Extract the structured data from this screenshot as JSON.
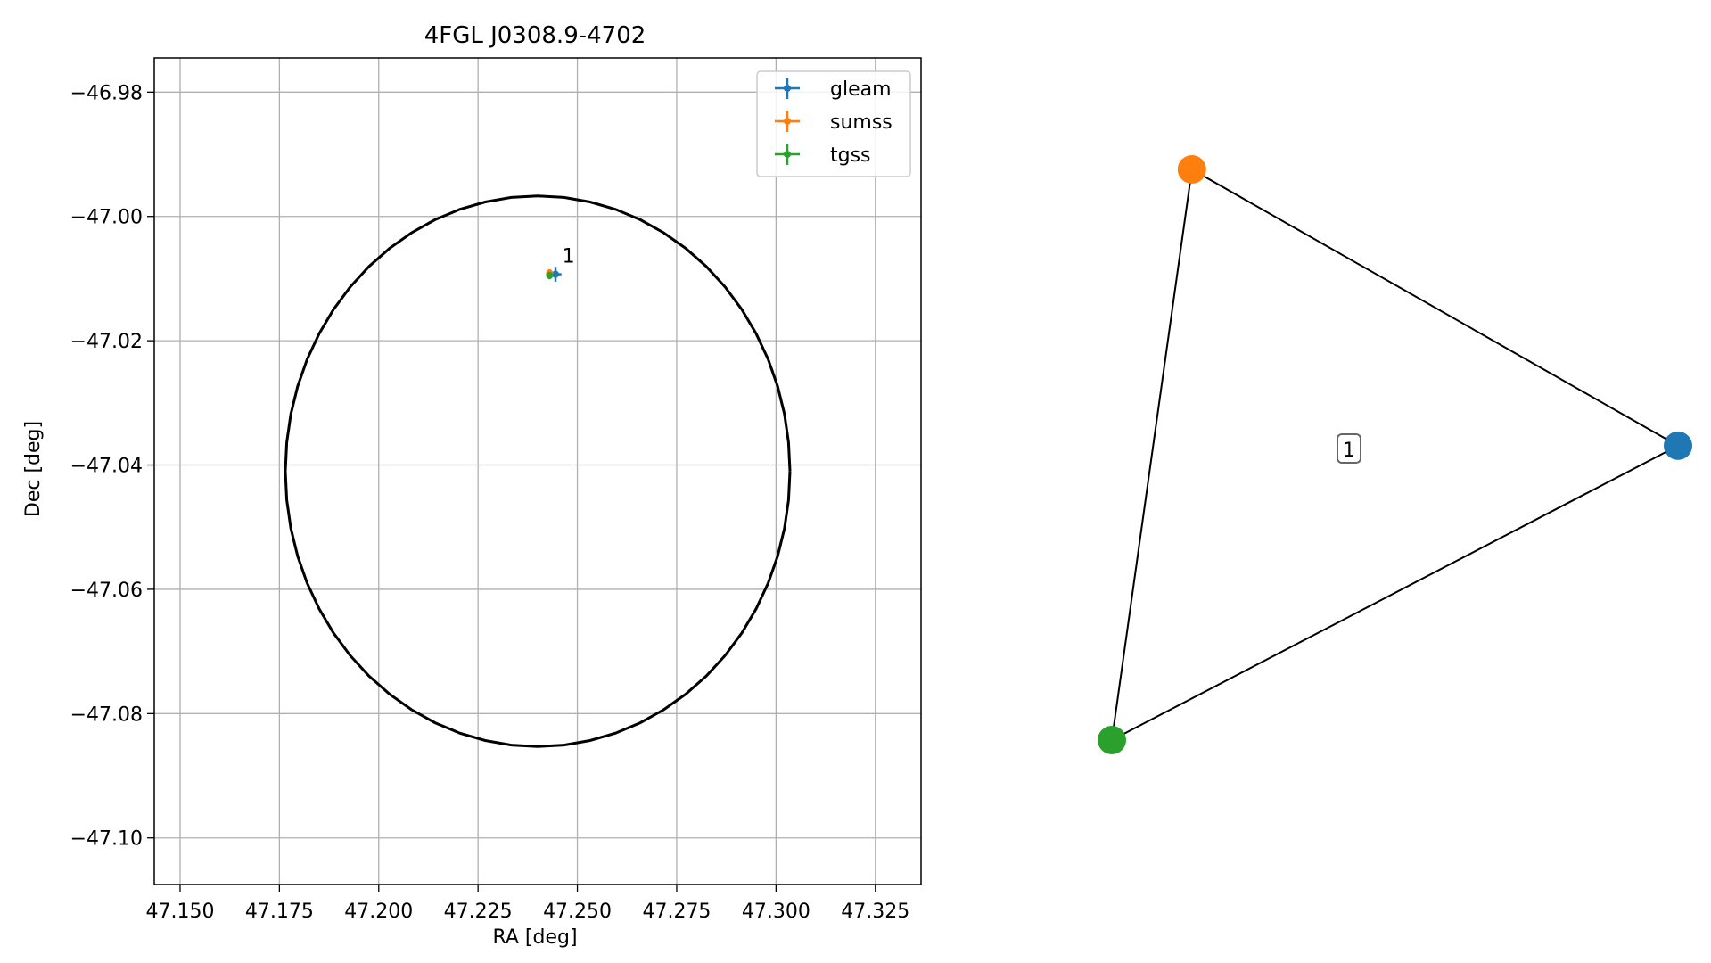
{
  "chart_data": [
    {
      "type": "scatter",
      "title": "4FGL J0308.9-4702",
      "xlabel": "RA [deg]",
      "ylabel": "Dec [deg]",
      "xlim": [
        47.1435,
        47.3365
      ],
      "ylim": [
        -47.1075,
        -46.9745
      ],
      "xticks": [
        47.15,
        47.175,
        47.2,
        47.225,
        47.25,
        47.275,
        47.3,
        47.325
      ],
      "xtick_labels": [
        "47.150",
        "47.175",
        "47.200",
        "47.225",
        "47.250",
        "47.275",
        "47.300",
        "47.325"
      ],
      "yticks": [
        -46.98,
        -47.0,
        -47.02,
        -47.04,
        -47.06,
        -47.08,
        -47.1
      ],
      "ytick_labels": [
        "−46.98",
        "−47.00",
        "−47.02",
        "−47.04",
        "−47.06",
        "−47.08",
        "−47.10"
      ],
      "grid": true,
      "legend_position": "top-right",
      "ellipse": {
        "center": [
          47.24,
          -47.041
        ],
        "semi_axis_x": 0.0635,
        "semi_axis_y": 0.0443,
        "color": "#000000"
      },
      "series": [
        {
          "name": "gleam",
          "color": "#1f77b4",
          "x": 47.2445,
          "y": -47.0093,
          "xerr": 0.0015,
          "yerr": 0.0012
        },
        {
          "name": "sumss",
          "color": "#ff7f0e",
          "x": 47.243,
          "y": -47.0091,
          "xerr": 0.0006,
          "yerr": 0.0006
        },
        {
          "name": "tgss",
          "color": "#2ca02c",
          "x": 47.243,
          "y": -47.0095,
          "xerr": 0.0006,
          "yerr": 0.0006
        }
      ],
      "annotation": {
        "text": "1",
        "x": 47.2462,
        "y": -47.0074
      }
    },
    {
      "type": "network",
      "nodes": [
        {
          "id": "gleam",
          "color": "#1f77b4",
          "x": 0.95,
          "y": 0.46
        },
        {
          "id": "sumss",
          "color": "#ff7f0e",
          "x": 0.1,
          "y": 0.92
        },
        {
          "id": "tgss",
          "color": "#2ca02c",
          "x": -0.04,
          "y": -0.03
        }
      ],
      "edges": [
        [
          "gleam",
          "sumss"
        ],
        [
          "sumss",
          "tgss"
        ],
        [
          "tgss",
          "gleam"
        ]
      ],
      "cluster_label": "1"
    }
  ]
}
